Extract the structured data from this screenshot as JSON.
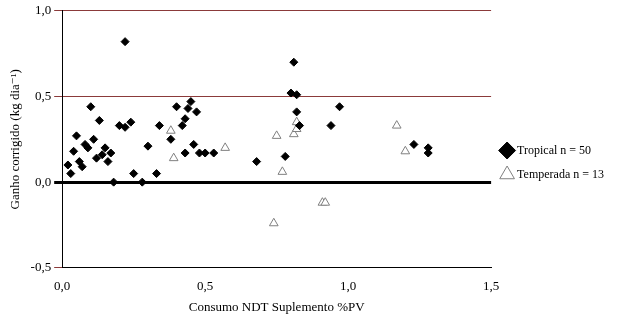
{
  "chart_data": {
    "type": "scatter",
    "x_label": "Consumo NDT Suplemento %PV",
    "y_label": "Ganho corrigido (kg dia⁻¹)",
    "xlim": [
      0,
      1.5
    ],
    "xticks": [
      {
        "value": 0,
        "label": "0,0"
      },
      {
        "value": 0.5,
        "label": "0,5"
      },
      {
        "value": 1,
        "label": "1,0"
      },
      {
        "value": 1.5,
        "label": "1,5"
      }
    ],
    "ylim": [
      -0.5,
      1
    ],
    "yticks": [
      {
        "value": -0.5,
        "label": "-0,5"
      },
      {
        "value": 0,
        "label": "0,0"
      },
      {
        "value": 0.5,
        "label": "0,5"
      },
      {
        "value": 1,
        "label": "1,0"
      }
    ],
    "grid": "y",
    "legend": "right",
    "series": [
      {
        "name": "Tropical n = 50",
        "color": "#000000",
        "marker": "diamond",
        "x": [
          0.02,
          0.03,
          0.04,
          0.05,
          0.06,
          0.07,
          0.08,
          0.09,
          0.1,
          0.11,
          0.12,
          0.13,
          0.14,
          0.15,
          0.16,
          0.17,
          0.18,
          0.2,
          0.22,
          0.22,
          0.24,
          0.25,
          0.28,
          0.3,
          0.33,
          0.34,
          0.38,
          0.4,
          0.42,
          0.43,
          0.43,
          0.44,
          0.45,
          0.46,
          0.47,
          0.48,
          0.5,
          0.53,
          0.68,
          0.78,
          0.8,
          0.81,
          0.82,
          0.82,
          0.83,
          0.94,
          0.97,
          1.23,
          1.28,
          1.28
        ],
        "values": [
          0.1,
          0.05,
          0.18,
          0.27,
          0.12,
          0.09,
          0.22,
          0.2,
          0.44,
          0.25,
          0.14,
          0.36,
          0.16,
          0.2,
          0.12,
          0.17,
          0.0,
          0.33,
          0.82,
          0.32,
          0.35,
          0.05,
          0.0,
          0.21,
          0.05,
          0.33,
          0.25,
          0.44,
          0.33,
          0.37,
          0.17,
          0.43,
          0.47,
          0.22,
          0.41,
          0.17,
          0.17,
          0.17,
          0.12,
          0.15,
          0.52,
          0.7,
          0.41,
          0.51,
          0.33,
          0.33,
          0.44,
          0.22,
          0.2,
          0.17
        ]
      },
      {
        "name": "Temperada n = 13",
        "color": "#808080",
        "marker": "triangle-open",
        "x": [
          0.38,
          0.39,
          0.57,
          0.74,
          0.75,
          0.77,
          0.81,
          0.82,
          0.82,
          0.91,
          0.92,
          1.17,
          1.2
        ],
        "values": [
          0.3,
          0.14,
          0.2,
          -0.24,
          0.27,
          0.06,
          0.28,
          0.31,
          0.35,
          -0.12,
          -0.12,
          0.33,
          0.18
        ]
      }
    ]
  }
}
